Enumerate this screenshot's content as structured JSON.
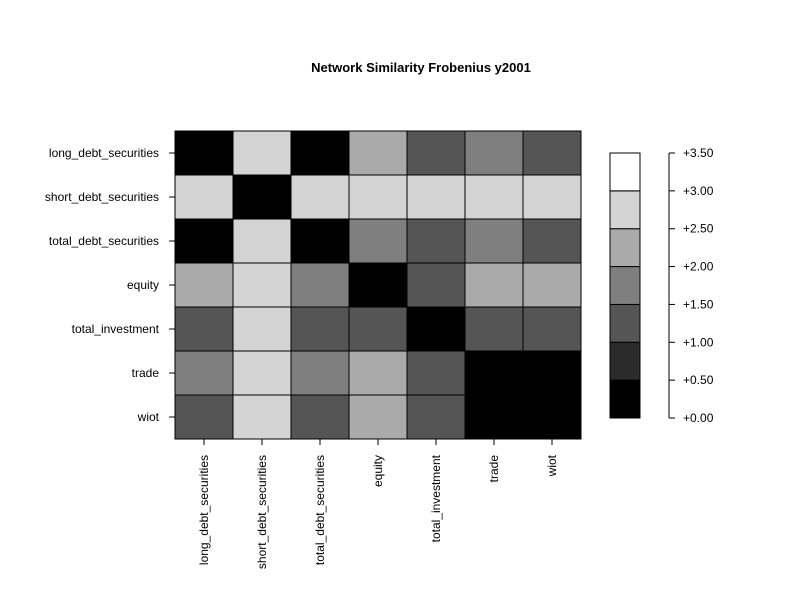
{
  "chart_data": {
    "type": "heatmap",
    "title": "Network Similarity Frobenius y2001",
    "xlabel": "",
    "ylabel": "",
    "row_labels": [
      "long_debt_securities",
      "short_debt_securities",
      "total_debt_securities",
      "equity",
      "total_investment",
      "trade",
      "wiot"
    ],
    "col_labels": [
      "long_debt_securities",
      "short_debt_securities",
      "total_debt_securities",
      "equity",
      "total_investment",
      "trade",
      "wiot"
    ],
    "values": [
      [
        0.25,
        2.75,
        0.25,
        2.25,
        1.25,
        1.75,
        1.25
      ],
      [
        2.75,
        0.25,
        2.75,
        2.75,
        2.75,
        2.75,
        2.75
      ],
      [
        0.25,
        2.75,
        0.25,
        1.75,
        1.25,
        1.75,
        1.25
      ],
      [
        2.25,
        2.75,
        1.75,
        0.25,
        1.25,
        2.25,
        2.25
      ],
      [
        1.25,
        2.75,
        1.25,
        1.25,
        0.25,
        1.25,
        1.25
      ],
      [
        1.75,
        2.75,
        1.75,
        2.25,
        1.25,
        0.25,
        0.25
      ],
      [
        1.25,
        2.75,
        1.25,
        2.25,
        1.25,
        0.25,
        0.25
      ]
    ],
    "color_scale": {
      "breaks": [
        0.0,
        0.5,
        1.0,
        1.5,
        2.0,
        2.5,
        3.0,
        3.5
      ],
      "colors": [
        "#000000",
        "#2b2b2b",
        "#555555",
        "#7f7f7f",
        "#aaaaaa",
        "#d4d4d4",
        "#ffffff"
      ],
      "tick_labels": [
        "+0.00",
        "+0.50",
        "+1.00",
        "+1.50",
        "+2.00",
        "+2.50",
        "+3.00",
        "+3.50"
      ],
      "range": [
        0.0,
        3.5
      ]
    },
    "legend_position": "right",
    "grid": false
  }
}
